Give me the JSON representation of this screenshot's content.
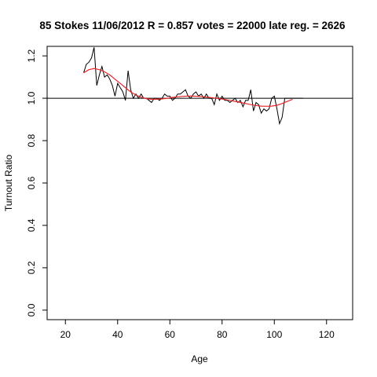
{
  "chart_data": {
    "type": "line",
    "title": "85 Stokes 11/06/2012 R = 0.857 votes = 22000 late reg. = 2626",
    "xlabel": "Age",
    "ylabel": "Turnout Ratio",
    "xlim": [
      13,
      130
    ],
    "ylim": [
      -0.045,
      1.245
    ],
    "x_ticks": [
      20,
      40,
      60,
      80,
      100,
      120
    ],
    "y_ticks": [
      0.0,
      0.2,
      0.4,
      0.6,
      0.8,
      1.0,
      1.2
    ],
    "reference_line": 1.0,
    "colors": {
      "observed": "#000000",
      "smoothed": "#e8262a",
      "reference": "#000000"
    },
    "series": [
      {
        "x": [
          27,
          28,
          29,
          30,
          31,
          32,
          33,
          34,
          35,
          36,
          37,
          38,
          39,
          40,
          41,
          42,
          43,
          44,
          45,
          46,
          47,
          48,
          49,
          50,
          51,
          52,
          53,
          54,
          55,
          56,
          57,
          58,
          59,
          60,
          61,
          62,
          63,
          64,
          65,
          66,
          67,
          68,
          69,
          70,
          71,
          72,
          73,
          74,
          75,
          76,
          77,
          78,
          79,
          80,
          81,
          82,
          83,
          84,
          85,
          86,
          87,
          88,
          89,
          90,
          91,
          92,
          93,
          94,
          95,
          96,
          97,
          98,
          99,
          100,
          101,
          102,
          103,
          104,
          105,
          106,
          107,
          108,
          109,
          110,
          111
        ],
        "values": [
          1.12,
          1.16,
          1.17,
          1.19,
          1.24,
          1.06,
          1.11,
          1.15,
          1.1,
          1.11,
          1.09,
          1.06,
          1.01,
          1.07,
          1.05,
          1.03,
          0.99,
          1.13,
          1.04,
          1.0,
          1.02,
          1.0,
          1.02,
          1.0,
          1.0,
          0.99,
          0.98,
          1.0,
          1.0,
          0.99,
          1.0,
          1.02,
          1.01,
          1.01,
          0.99,
          1.0,
          1.02,
          1.02,
          1.03,
          1.04,
          1.01,
          1.0,
          1.02,
          1.03,
          1.01,
          1.02,
          1.0,
          1.02,
          1.0,
          1.0,
          0.97,
          1.02,
          0.99,
          1.01,
          0.99,
          0.99,
          0.98,
          0.99,
          1.0,
          0.98,
          0.99,
          0.96,
          0.99,
          0.99,
          1.04,
          0.94,
          0.98,
          0.97,
          0.93,
          0.95,
          0.94,
          0.95,
          1.0,
          1.01,
          0.95,
          0.88,
          0.91,
          1.0,
          1.0,
          1.0,
          1.0,
          1.0,
          1.0,
          1.0,
          1.0
        ]
      },
      {
        "x": [
          27,
          29,
          31,
          33,
          35,
          37,
          39,
          41,
          43,
          45,
          47,
          49,
          51,
          53,
          55,
          57,
          59,
          61,
          63,
          65,
          67,
          69,
          71,
          73,
          75,
          77,
          79,
          81,
          83,
          85,
          87,
          89,
          91,
          93,
          95,
          97,
          99,
          101,
          103,
          105,
          107
        ],
        "values": [
          1.12,
          1.135,
          1.14,
          1.135,
          1.125,
          1.11,
          1.09,
          1.07,
          1.05,
          1.03,
          1.015,
          1.005,
          0.998,
          0.995,
          0.995,
          0.997,
          1.0,
          1.004,
          1.007,
          1.009,
          1.01,
          1.01,
          1.009,
          1.007,
          1.004,
          1.001,
          0.998,
          0.994,
          0.99,
          0.985,
          0.98,
          0.975,
          0.97,
          0.966,
          0.963,
          0.962,
          0.963,
          0.967,
          0.975,
          0.985,
          0.995
        ]
      }
    ]
  }
}
